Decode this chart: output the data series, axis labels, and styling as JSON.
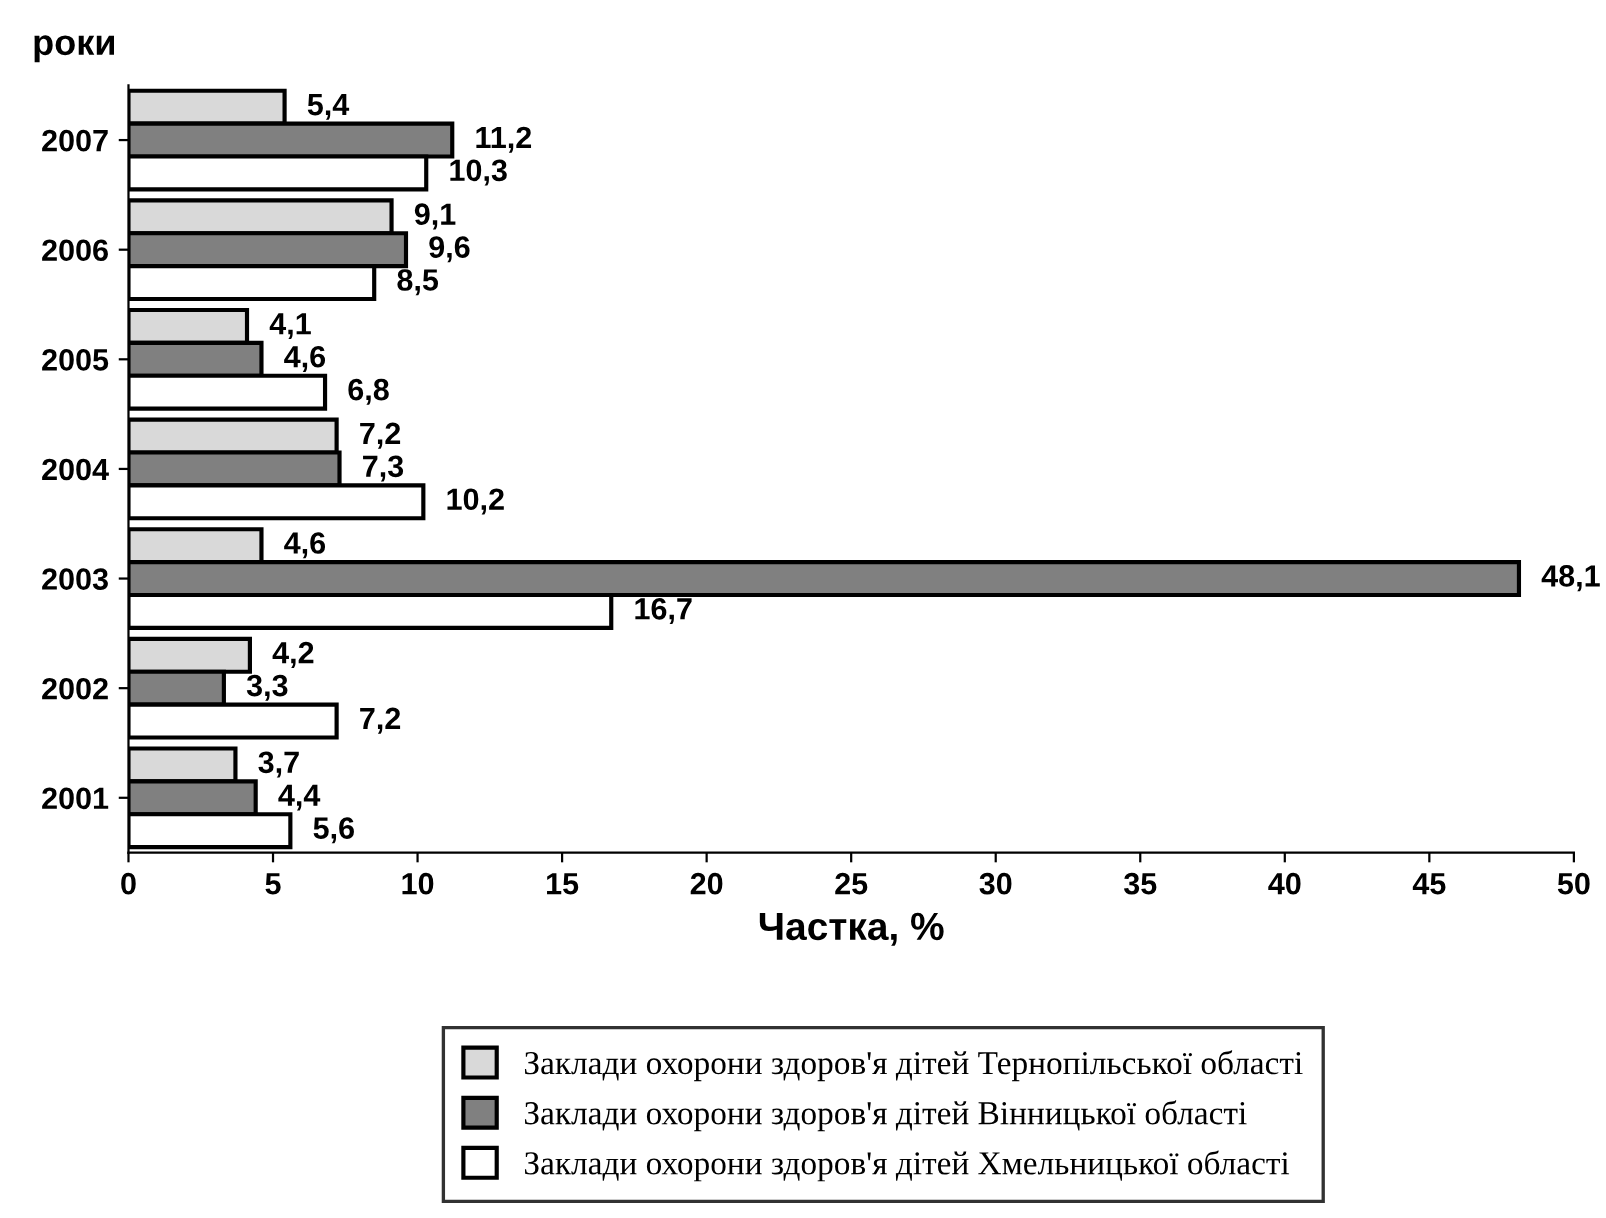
{
  "chart_data": {
    "type": "bar",
    "orientation": "horizontal",
    "ylabel": "роки",
    "xlabel": "Частка, %",
    "categories": [
      "2007",
      "2006",
      "2005",
      "2004",
      "2003",
      "2002",
      "2001"
    ],
    "series": [
      {
        "name": "Заклади охорони здоров'я дітей Тернопільської області",
        "color": "#d9d9d9",
        "values": [
          5.4,
          9.1,
          4.1,
          7.2,
          4.6,
          4.2,
          3.7
        ],
        "value_labels": [
          "5,4",
          "9,1",
          "4,1",
          "7,2",
          "4,6",
          "4,2",
          "3,7"
        ]
      },
      {
        "name": "Заклади охорони здоров'я дітей Вінницької області",
        "color": "#808080",
        "values": [
          11.2,
          9.6,
          4.6,
          7.3,
          48.1,
          3.3,
          4.4
        ],
        "value_labels": [
          "11,2",
          "9,6",
          "4,6",
          "7,3",
          "48,1",
          "3,3",
          "4,4"
        ]
      },
      {
        "name": "Заклади охорони здоров'я дітей Хмельницької області",
        "color": "#ffffff",
        "values": [
          10.3,
          8.5,
          6.8,
          10.2,
          16.7,
          7.2,
          5.6
        ],
        "value_labels": [
          "10,3",
          "8,5",
          "6,8",
          "10,2",
          "16,7",
          "7,2",
          "5,6"
        ]
      }
    ],
    "xlim": [
      0,
      50
    ],
    "xticks": [
      0,
      5,
      10,
      15,
      20,
      25,
      30,
      35,
      40,
      45,
      50
    ],
    "grid": false,
    "legend": "bottom"
  }
}
